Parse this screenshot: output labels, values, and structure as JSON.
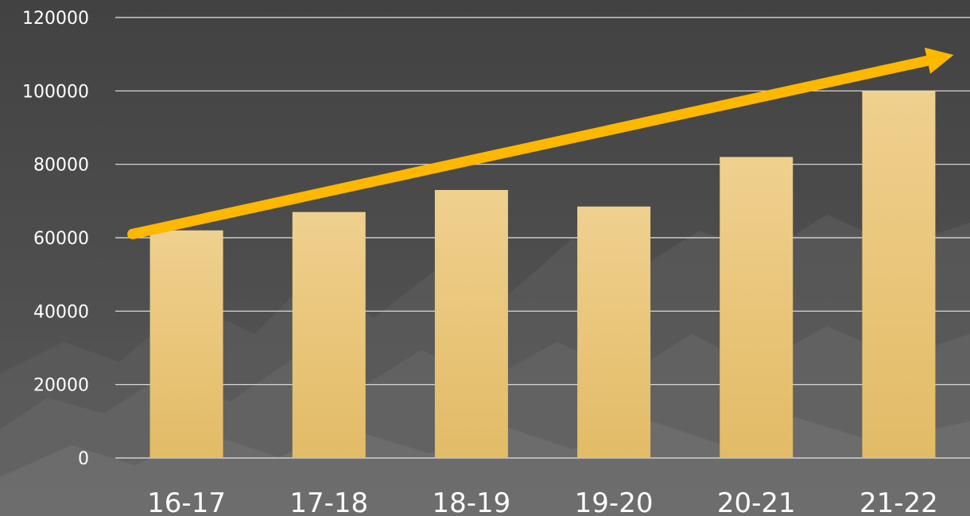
{
  "chart_data": {
    "type": "bar",
    "categories": [
      "16-17",
      "17-18",
      "18-19",
      "19-20",
      "20-21",
      "21-22"
    ],
    "values": [
      62000,
      67000,
      73000,
      68500,
      82000,
      100000
    ],
    "ylim": [
      0,
      120000
    ],
    "yticks": [
      0,
      20000,
      40000,
      60000,
      80000,
      100000,
      120000
    ],
    "ytick_labels": [
      "0",
      "20000",
      "40000",
      "60000",
      "80000",
      "100000",
      "120000"
    ],
    "grid": true,
    "legend": "none",
    "trend_arrow": {
      "from": [
        0,
        61000
      ],
      "to": [
        5.6,
        109000
      ]
    },
    "colors": {
      "bar_top": "#efd08e",
      "bar_bottom": "#e2bb66",
      "arrow": "#ffb800",
      "grid": "#e6e6e6",
      "text": "#ffffff",
      "background": "#4b4b4b"
    }
  }
}
